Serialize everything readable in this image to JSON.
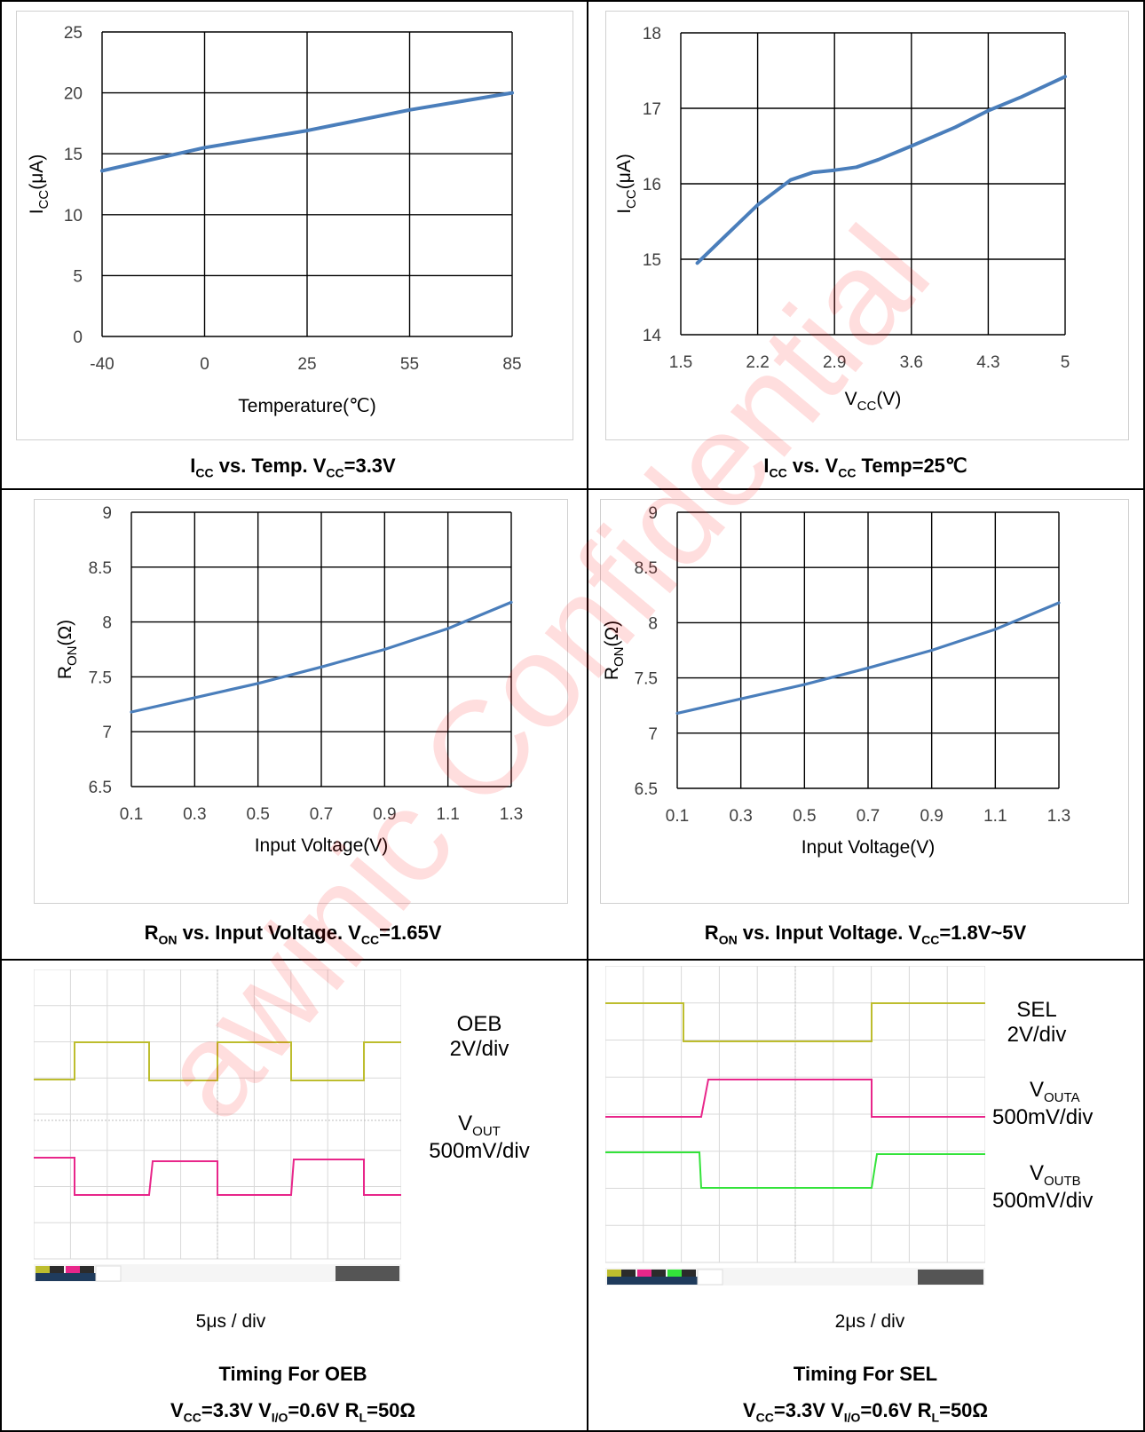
{
  "watermark": "awinic Confidential",
  "charts": {
    "icc_temp": {
      "ylabel_main": "I",
      "ylabel_sub": "CC",
      "ylabel_unit": "(μA)",
      "xlabel": "Temperature(℃)",
      "yticks": [
        "0",
        "5",
        "10",
        "15",
        "20",
        "25"
      ],
      "xticks": [
        "-40",
        "0",
        "25",
        "55",
        "85"
      ],
      "caption_parts": [
        "I",
        "CC",
        " vs. Temp. V",
        "CC",
        "=3.3V"
      ]
    },
    "icc_vcc": {
      "ylabel_main": "I",
      "ylabel_sub": "CC",
      "ylabel_unit": "(μA)",
      "xlabel_main": "V",
      "xlabel_sub": "CC",
      "xlabel_unit": "(V)",
      "yticks": [
        "14",
        "15",
        "16",
        "17",
        "18"
      ],
      "xticks": [
        "1.5",
        "2.2",
        "2.9",
        "3.6",
        "4.3",
        "5"
      ],
      "caption_parts": [
        "I",
        "CC",
        " vs. V",
        "CC",
        " Temp=25℃"
      ]
    },
    "ron_165": {
      "ylabel_main": "R",
      "ylabel_sub": "ON",
      "ylabel_unit": "(Ω)",
      "xlabel": "Input Voltage(V)",
      "yticks": [
        "6.5",
        "7",
        "7.5",
        "8",
        "8.5",
        "9"
      ],
      "xticks": [
        "0.1",
        "0.3",
        "0.5",
        "0.7",
        "0.9",
        "1.1",
        "1.3"
      ],
      "caption_parts": [
        "R",
        "ON",
        " vs. Input Voltage. V",
        "CC",
        "=1.65V"
      ]
    },
    "ron_18_5": {
      "ylabel_main": "R",
      "ylabel_sub": "ON",
      "ylabel_unit": "(Ω)",
      "xlabel": "Input Voltage(V)",
      "yticks": [
        "6.5",
        "7",
        "7.5",
        "8",
        "8.5",
        "9"
      ],
      "xticks": [
        "0.1",
        "0.3",
        "0.5",
        "0.7",
        "0.9",
        "1.1",
        "1.3"
      ],
      "caption_parts": [
        "R",
        "ON",
        " vs. Input Voltage. V",
        "CC",
        "=1.8V~5V"
      ]
    }
  },
  "scopes": {
    "oeb": {
      "ch1_label": "OEB",
      "ch1_scale": "2V/div",
      "ch2_label_main": "V",
      "ch2_label_sub": "OUT",
      "ch2_scale": "500mV/div",
      "timebase": "5μs / div",
      "title": "Timing For OEB",
      "cond_parts": [
        "V",
        "CC",
        "=3.3V V",
        "I/O",
        "=0.6V R",
        "L",
        "=50Ω"
      ]
    },
    "sel": {
      "ch1_label": "SEL",
      "ch1_scale": "2V/div",
      "ch2_label_main": "V",
      "ch2_label_sub": "OUTA",
      "ch2_scale": "500mV/div",
      "ch3_label_main": "V",
      "ch3_label_sub": "OUTB",
      "ch3_scale": "500mV/div",
      "timebase": "2μs / div",
      "title": "Timing For SEL",
      "cond_parts": [
        "V",
        "CC",
        "=3.3V V",
        "I/O",
        "=0.6V R",
        "L",
        "=50Ω"
      ]
    }
  },
  "colors": {
    "series": "#4a7ebb",
    "ch1": "#bdbd2e",
    "ch2": "#e8268a",
    "ch3": "#33e33a",
    "watermark": "#ff0000"
  },
  "chart_data": [
    {
      "type": "line",
      "title": "",
      "xlabel": "Temperature(℃)",
      "ylabel": "ICC(μA)",
      "x_categories": [
        "-40",
        "0",
        "25",
        "55",
        "85"
      ],
      "ylim": [
        0,
        25
      ],
      "x": [
        "-40",
        "0",
        "25",
        "55",
        "85"
      ],
      "values": [
        13.6,
        15.5,
        16.9,
        18.6,
        20.0
      ]
    },
    {
      "type": "line",
      "title": "",
      "xlabel": "VCC(V)",
      "ylabel": "ICC(μA)",
      "xlim": [
        1.5,
        5
      ],
      "ylim": [
        14,
        18
      ],
      "x": [
        1.65,
        1.9,
        2.2,
        2.5,
        2.7,
        2.9,
        3.1,
        3.3,
        3.6,
        4.0,
        4.3,
        4.6,
        5.0
      ],
      "values": [
        14.95,
        15.3,
        15.72,
        16.05,
        16.15,
        16.18,
        16.22,
        16.32,
        16.5,
        16.75,
        16.97,
        17.15,
        17.42
      ]
    },
    {
      "type": "line",
      "title": "",
      "xlabel": "Input Voltage(V)",
      "ylabel": "RON(Ω)",
      "xlim": [
        0.1,
        1.3
      ],
      "ylim": [
        6.5,
        9
      ],
      "x": [
        0.1,
        0.3,
        0.5,
        0.7,
        0.9,
        1.1,
        1.3
      ],
      "values": [
        7.18,
        7.31,
        7.44,
        7.59,
        7.75,
        7.94,
        8.18
      ]
    },
    {
      "type": "line",
      "title": "",
      "xlabel": "Input Voltage(V)",
      "ylabel": "RON(Ω)",
      "xlim": [
        0.1,
        1.3
      ],
      "ylim": [
        6.5,
        9
      ],
      "x": [
        0.1,
        0.3,
        0.5,
        0.7,
        0.9,
        1.1,
        1.3
      ],
      "values": [
        7.18,
        7.31,
        7.44,
        7.59,
        7.75,
        7.94,
        8.18
      ]
    }
  ]
}
